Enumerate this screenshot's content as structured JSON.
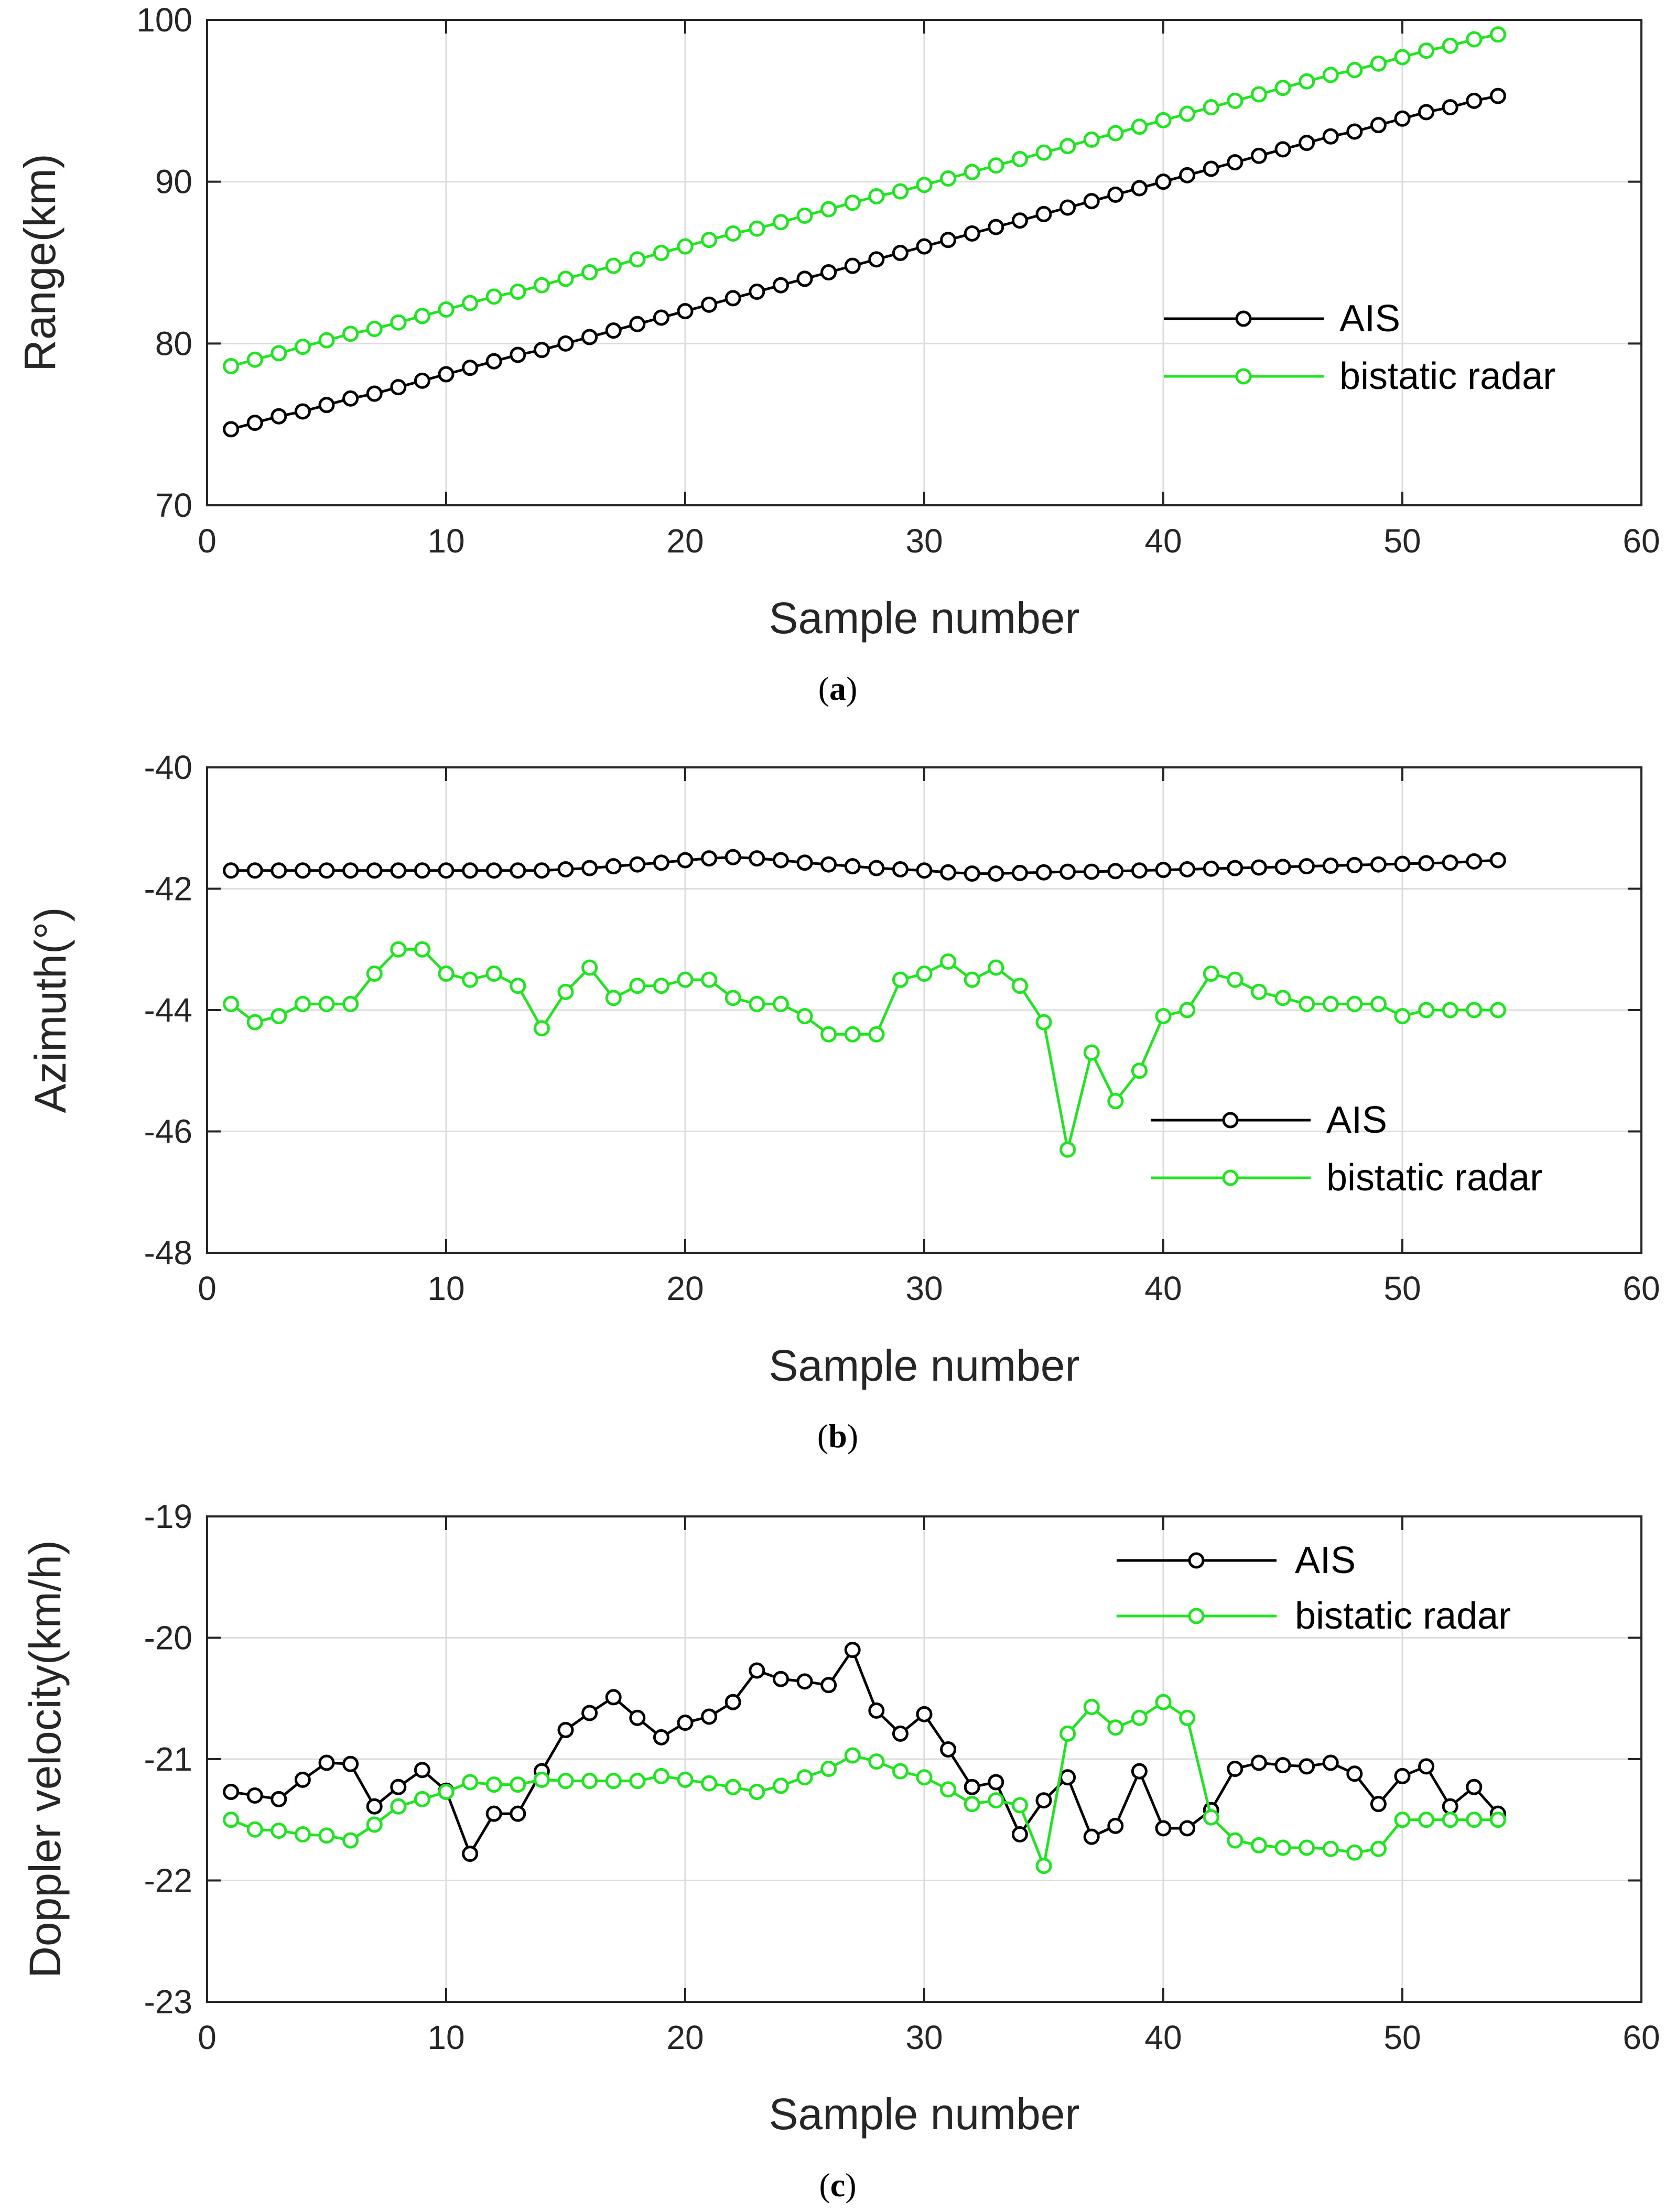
{
  "colors": {
    "ais": "#000000",
    "radar": "#1ee61e",
    "grid": "#dcdcdc",
    "axes": "#262626"
  },
  "chart_data": [
    {
      "type": "line",
      "caption_letter": "a",
      "xlabel": "Sample number",
      "ylabel": "Range(km)",
      "xlim": [
        0,
        60
      ],
      "ylim": [
        70,
        100
      ],
      "xticks": [
        0,
        10,
        20,
        30,
        40,
        50,
        60
      ],
      "yticks": [
        70,
        80,
        90,
        100
      ],
      "legend_position": "right",
      "x": [
        1,
        2,
        3,
        4,
        5,
        6,
        7,
        8,
        9,
        10,
        11,
        12,
        13,
        14,
        15,
        16,
        17,
        18,
        19,
        20,
        21,
        22,
        23,
        24,
        25,
        26,
        27,
        28,
        29,
        30,
        31,
        32,
        33,
        34,
        35,
        36,
        37,
        38,
        39,
        40,
        41,
        42,
        43,
        44,
        45,
        46,
        47,
        48,
        49,
        50,
        51,
        52,
        53,
        54
      ],
      "series": [
        {
          "name": "AIS",
          "color": "#000000",
          "values": [
            74.7,
            75.1,
            75.5,
            75.8,
            76.2,
            76.6,
            76.9,
            77.3,
            77.7,
            78.1,
            78.5,
            78.9,
            79.3,
            79.6,
            80.0,
            80.4,
            80.8,
            81.2,
            81.6,
            82.0,
            82.4,
            82.8,
            83.2,
            83.6,
            84.0,
            84.4,
            84.8,
            85.2,
            85.6,
            86.0,
            86.4,
            86.8,
            87.2,
            87.6,
            88.0,
            88.4,
            88.8,
            89.2,
            89.6,
            90.0,
            90.4,
            90.8,
            91.2,
            91.6,
            92.0,
            92.4,
            92.8,
            93.1,
            93.5,
            93.9,
            94.3,
            94.6,
            95.0,
            95.3
          ]
        },
        {
          "name": "bistatic radar",
          "color": "#1ee61e",
          "values": [
            78.6,
            79.0,
            79.4,
            79.8,
            80.2,
            80.6,
            80.9,
            81.3,
            81.7,
            82.1,
            82.5,
            82.9,
            83.2,
            83.6,
            84.0,
            84.4,
            84.8,
            85.2,
            85.6,
            86.0,
            86.4,
            86.8,
            87.1,
            87.5,
            87.9,
            88.3,
            88.7,
            89.1,
            89.4,
            89.8,
            90.2,
            90.6,
            91.0,
            91.4,
            91.8,
            92.2,
            92.6,
            93.0,
            93.4,
            93.8,
            94.2,
            94.6,
            95.0,
            95.4,
            95.8,
            96.2,
            96.6,
            96.9,
            97.3,
            97.7,
            98.1,
            98.4,
            98.8,
            99.1
          ]
        }
      ]
    },
    {
      "type": "line",
      "caption_letter": "b",
      "xlabel": "Sample number",
      "ylabel": "Azimuth(°)",
      "xlim": [
        0,
        60
      ],
      "ylim": [
        -48,
        -40
      ],
      "xticks": [
        0,
        10,
        20,
        30,
        40,
        50,
        60
      ],
      "yticks": [
        -48,
        -46,
        -44,
        -42,
        -40
      ],
      "legend_position": "lower-right",
      "x": [
        1,
        2,
        3,
        4,
        5,
        6,
        7,
        8,
        9,
        10,
        11,
        12,
        13,
        14,
        15,
        16,
        17,
        18,
        19,
        20,
        21,
        22,
        23,
        24,
        25,
        26,
        27,
        28,
        29,
        30,
        31,
        32,
        33,
        34,
        35,
        36,
        37,
        38,
        39,
        40,
        41,
        42,
        43,
        44,
        45,
        46,
        47,
        48,
        49,
        50,
        51,
        52,
        53,
        54
      ],
      "series": [
        {
          "name": "AIS",
          "color": "#000000",
          "values": [
            -41.7,
            -41.7,
            -41.7,
            -41.7,
            -41.7,
            -41.7,
            -41.7,
            -41.7,
            -41.7,
            -41.7,
            -41.7,
            -41.7,
            -41.7,
            -41.7,
            -41.68,
            -41.66,
            -41.63,
            -41.6,
            -41.57,
            -41.53,
            -41.5,
            -41.48,
            -41.5,
            -41.53,
            -41.57,
            -41.6,
            -41.63,
            -41.66,
            -41.68,
            -41.7,
            -41.73,
            -41.75,
            -41.75,
            -41.74,
            -41.73,
            -41.72,
            -41.72,
            -41.71,
            -41.7,
            -41.69,
            -41.68,
            -41.67,
            -41.66,
            -41.65,
            -41.64,
            -41.63,
            -41.62,
            -41.61,
            -41.6,
            -41.59,
            -41.58,
            -41.57,
            -41.55,
            -41.53
          ]
        },
        {
          "name": "bistatic radar",
          "color": "#1ee61e",
          "values": [
            -43.9,
            -44.2,
            -44.1,
            -43.9,
            -43.9,
            -43.9,
            -43.4,
            -43.0,
            -43.0,
            -43.4,
            -43.5,
            -43.4,
            -43.6,
            -44.3,
            -43.7,
            -43.3,
            -43.8,
            -43.6,
            -43.6,
            -43.5,
            -43.5,
            -43.8,
            -43.9,
            -43.9,
            -44.1,
            -44.4,
            -44.4,
            -44.4,
            -43.5,
            -43.4,
            -43.2,
            -43.5,
            -43.3,
            -43.6,
            -44.2,
            -46.3,
            -44.7,
            -45.5,
            -45.0,
            -44.1,
            -44.0,
            -43.4,
            -43.5,
            -43.7,
            -43.8,
            -43.9,
            -43.9,
            -43.9,
            -43.9,
            -44.1,
            -44.0,
            -44.0,
            -44.0,
            -44.0
          ]
        }
      ]
    },
    {
      "type": "line",
      "caption_letter": "c",
      "xlabel": "Sample number",
      "ylabel": "Doppler velocity(km/h)",
      "xlim": [
        0,
        60
      ],
      "ylim": [
        -23,
        -19
      ],
      "xticks": [
        0,
        10,
        20,
        30,
        40,
        50,
        60
      ],
      "yticks": [
        -23,
        -22,
        -21,
        -20,
        -19
      ],
      "legend_position": "top-right",
      "x": [
        1,
        2,
        3,
        4,
        5,
        6,
        7,
        8,
        9,
        10,
        11,
        12,
        13,
        14,
        15,
        16,
        17,
        18,
        19,
        20,
        21,
        22,
        23,
        24,
        25,
        26,
        27,
        28,
        29,
        30,
        31,
        32,
        33,
        34,
        35,
        36,
        37,
        38,
        39,
        40,
        41,
        42,
        43,
        44,
        45,
        46,
        47,
        48,
        49,
        50,
        51,
        52,
        53,
        54
      ],
      "series": [
        {
          "name": "AIS",
          "color": "#000000",
          "values": [
            -21.27,
            -21.3,
            -21.33,
            -21.17,
            -21.03,
            -21.04,
            -21.39,
            -21.23,
            -21.09,
            -21.26,
            -21.78,
            -21.45,
            -21.45,
            -21.1,
            -20.76,
            -20.62,
            -20.49,
            -20.66,
            -20.82,
            -20.7,
            -20.65,
            -20.53,
            -20.27,
            -20.34,
            -20.36,
            -20.39,
            -20.1,
            -20.6,
            -20.79,
            -20.63,
            -20.92,
            -21.23,
            -21.19,
            -21.62,
            -21.34,
            -21.15,
            -21.64,
            -21.55,
            -21.1,
            -21.57,
            -21.57,
            -21.42,
            -21.08,
            -21.03,
            -21.05,
            -21.06,
            -21.03,
            -21.12,
            -21.37,
            -21.14,
            -21.06,
            -21.39,
            -21.23,
            -21.45
          ]
        },
        {
          "name": "bistatic radar",
          "color": "#1ee61e",
          "values": [
            -21.5,
            -21.58,
            -21.59,
            -21.62,
            -21.63,
            -21.67,
            -21.54,
            -21.39,
            -21.33,
            -21.27,
            -21.19,
            -21.21,
            -21.21,
            -21.17,
            -21.18,
            -21.18,
            -21.18,
            -21.18,
            -21.14,
            -21.17,
            -21.2,
            -21.23,
            -21.27,
            -21.22,
            -21.15,
            -21.08,
            -20.97,
            -21.02,
            -21.1,
            -21.15,
            -21.25,
            -21.37,
            -21.34,
            -21.38,
            -21.88,
            -20.79,
            -20.57,
            -20.74,
            -20.66,
            -20.53,
            -20.66,
            -21.48,
            -21.67,
            -21.71,
            -21.73,
            -21.73,
            -21.74,
            -21.77,
            -21.74,
            -21.5,
            -21.5,
            -21.5,
            -21.5,
            -21.5
          ]
        }
      ]
    }
  ]
}
